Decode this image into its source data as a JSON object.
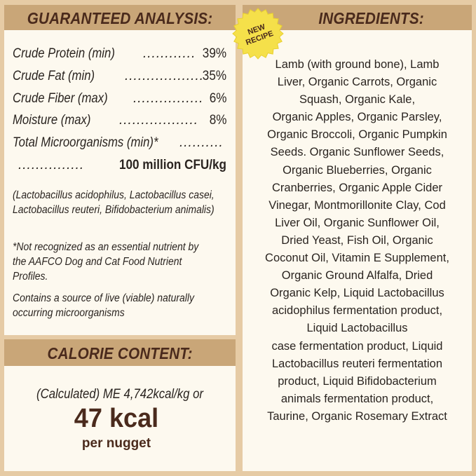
{
  "analysis": {
    "title": "GUARANTEED ANALYSIS:",
    "rows": [
      {
        "label": "Crude Protein (min)",
        "dots": "............",
        "value": "39%"
      },
      {
        "label": "Crude Fat (min)",
        "dots": "..................",
        "value": "35%"
      },
      {
        "label": "Crude Fiber (max)",
        "dots": "................",
        "value": "6%"
      },
      {
        "label": "Moisture (max)",
        "dots": "..................",
        "value": "8%"
      },
      {
        "label": "Total Microorganisms (min)*",
        "dots": "..........",
        "value": ""
      }
    ],
    "cfu_dots": "...............",
    "cfu_value": "100 million CFU/kg",
    "strains": "(Lactobacillus acidophilus, Lactobacillus casei, Lactobacillus reuteri, Bifidobacterium animalis)",
    "footnote": "*Not recognized as an essential nutrient by the AAFCO Dog and Cat Food Nutrient Profiles.",
    "live_note": "Contains a source of live (viable) naturally occurring microorganisms"
  },
  "calorie": {
    "title": "CALORIE CONTENT:",
    "calculated": "(Calculated) ME 4,742kcal/kg or",
    "kcal": "47 kcal",
    "per": "per nugget"
  },
  "ingredients": {
    "title": "INGREDIENTS:",
    "badge": "NEW RECIPE",
    "badge_line1": "NEW",
    "badge_line2": "RECIPE",
    "badge_color": "#f5e04a",
    "lines": [
      "Lamb (with ground bone), Lamb",
      "Liver, Organic Carrots, Organic",
      "Squash, Organic Kale,",
      "Organic Apples, Organic Parsley,",
      "Organic Broccoli, Organic Pumpkin",
      "Seeds. Organic Sunflower Seeds,",
      "Organic Blueberries, Organic",
      "Cranberries, Organic Apple Cider",
      "Vinegar, Montmorillonite Clay, Cod",
      "Liver Oil, Organic Sunflower Oil,",
      "Dried Yeast, Fish Oil, Organic",
      "Coconut Oil, Vitamin E Supplement,",
      "Organic Ground Alfalfa, Dried",
      "Organic Kelp, Liquid Lactobacillus",
      "acidophilus fermentation product,",
      "Liquid Lactobacillus",
      "case fermentation product, Liquid",
      "Lactobacillus reuteri fermentation",
      "product, Liquid Bifidobacterium",
      "animals fermentation product,",
      "Taurine, Organic Rosemary Extract"
    ]
  }
}
